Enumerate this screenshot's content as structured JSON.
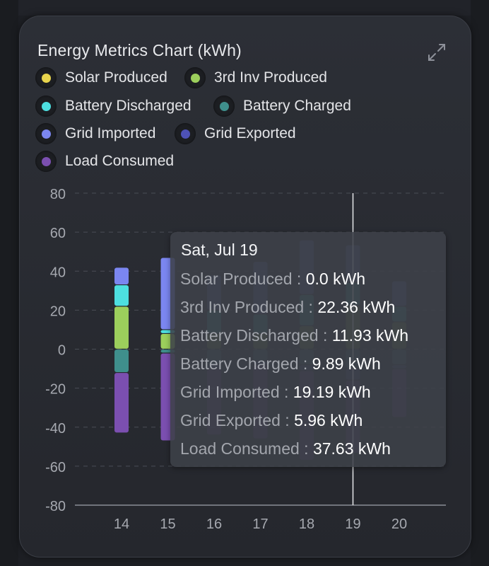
{
  "card": {
    "title": "Energy Metrics Chart (kWh)",
    "expand_icon": "expand-icon"
  },
  "legend": [
    {
      "label": "Solar Produced",
      "color": "#e8d44d"
    },
    {
      "label": "3rd Inv Produced",
      "color": "#9ccf5c"
    },
    {
      "label": "Battery Discharged",
      "color": "#4ddfe0"
    },
    {
      "label": "Battery Charged",
      "color": "#3f8f8c"
    },
    {
      "label": "Grid Imported",
      "color": "#7b86f0"
    },
    {
      "label": "Grid Exported",
      "color": "#4e52b6"
    },
    {
      "label": "Load Consumed",
      "color": "#7b4fb0"
    }
  ],
  "tooltip": {
    "title": "Sat, Jul 19",
    "rows": [
      {
        "key": "Solar Produced : ",
        "value": "0.0 kWh"
      },
      {
        "key": "3rd Inv Produced : ",
        "value": "22.36 kWh"
      },
      {
        "key": "Battery Discharged : ",
        "value": "11.93 kWh"
      },
      {
        "key": "Battery Charged : ",
        "value": "9.89 kWh"
      },
      {
        "key": "Grid Imported : ",
        "value": "19.19 kWh"
      },
      {
        "key": "Grid Exported : ",
        "value": "5.96 kWh"
      },
      {
        "key": "Load Consumed : ",
        "value": "37.63 kWh"
      }
    ]
  },
  "chart_data": {
    "type": "bar",
    "stacked": true,
    "categories": [
      "14",
      "15",
      "16",
      "17",
      "18",
      "19",
      "20"
    ],
    "ylim": [
      -80,
      80
    ],
    "yticks": [
      80,
      60,
      40,
      20,
      0,
      -20,
      -40,
      -60,
      -80
    ],
    "grid": true,
    "hover_category": "19",
    "series": [
      {
        "name": "Solar Produced",
        "color": "#e8d44d",
        "values": [
          0,
          0,
          0,
          0,
          0,
          0,
          0
        ]
      },
      {
        "name": "3rd Inv Produced",
        "color": "#9ccf5c",
        "values": [
          22,
          8,
          8,
          8,
          12,
          22.36,
          14
        ]
      },
      {
        "name": "Battery Discharged",
        "color": "#4ddfe0",
        "values": [
          11,
          2,
          12,
          10,
          16,
          11.93,
          8
        ]
      },
      {
        "name": "Grid Imported",
        "color": "#7b86f0",
        "values": [
          9,
          37,
          18,
          27,
          28,
          19.19,
          13
        ]
      },
      {
        "name": "Battery Charged",
        "color": "#3f8f8c",
        "values": [
          -12,
          -2,
          -8,
          -6,
          -8,
          -9.89,
          -8
        ]
      },
      {
        "name": "Grid Exported",
        "color": "#4e52b6",
        "values": [
          0,
          0,
          -2,
          -2,
          -3,
          -5.96,
          -2
        ]
      },
      {
        "name": "Load Consumed",
        "color": "#7b4fb0",
        "values": [
          -31,
          -45,
          -34,
          -38,
          -46,
          -37.63,
          -25
        ]
      }
    ]
  }
}
